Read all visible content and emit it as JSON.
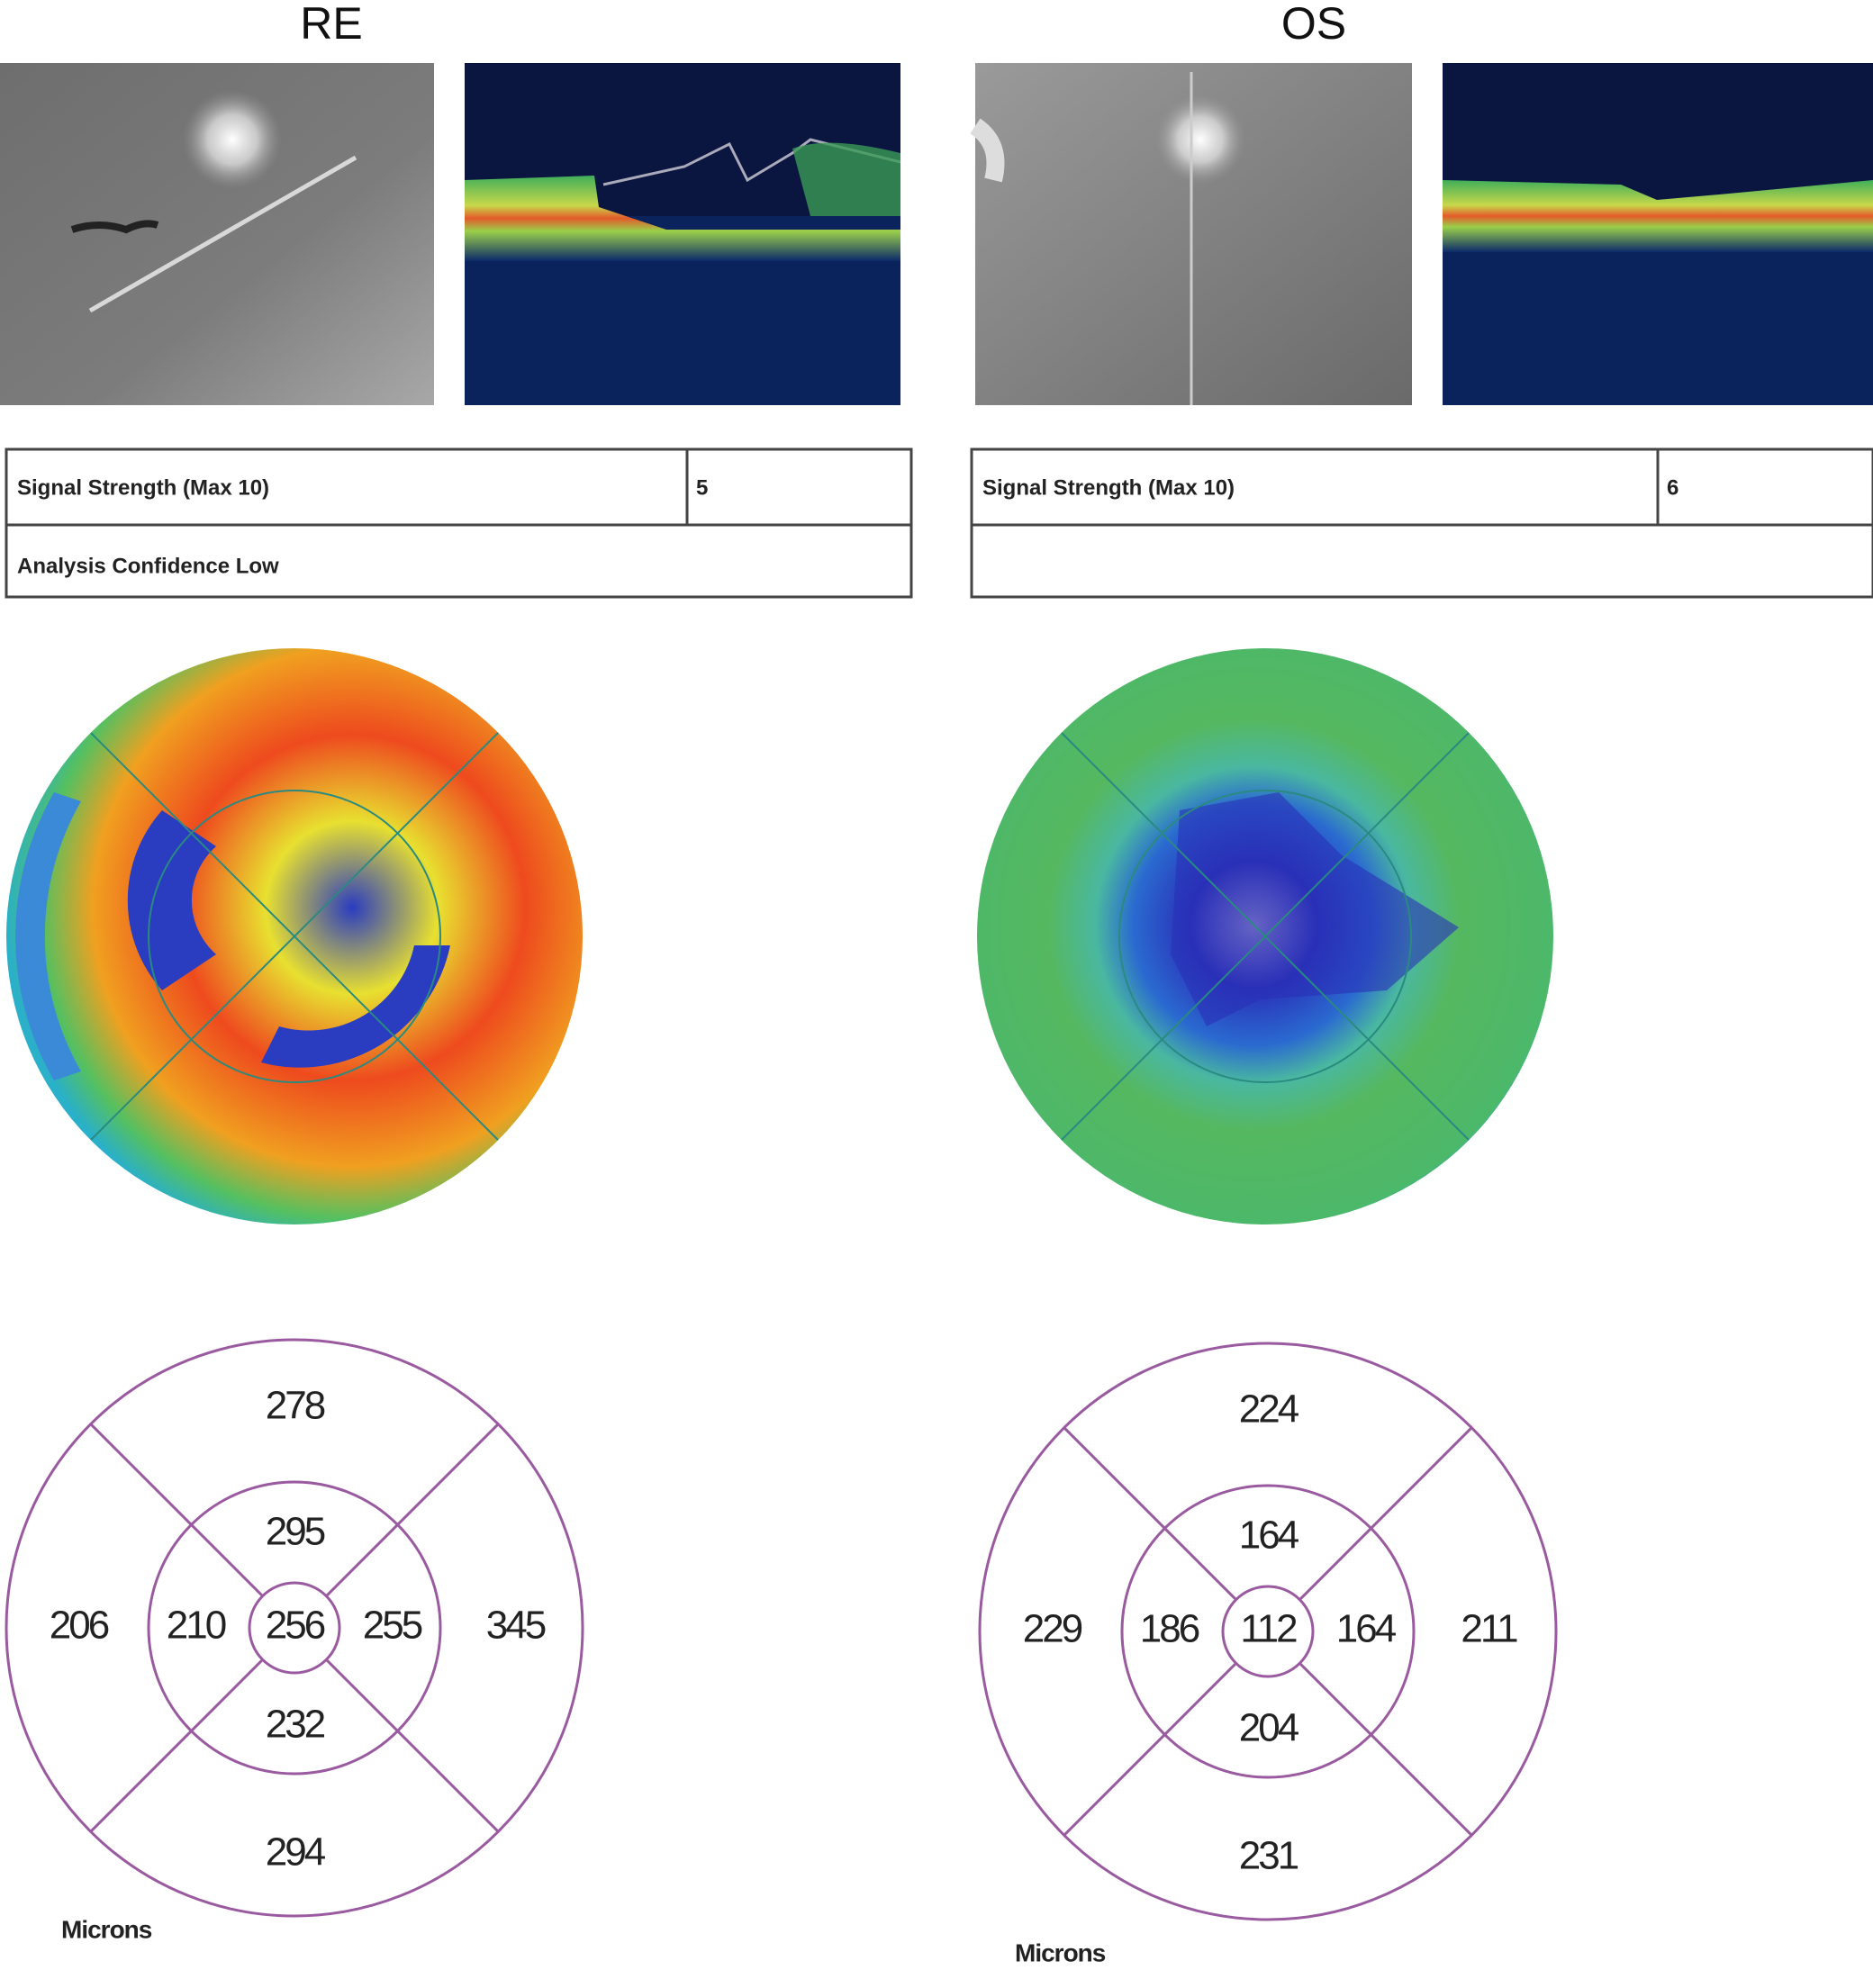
{
  "panels": [
    {
      "eye": "RE",
      "signal_label": "Signal Strength (Max 10)",
      "signal_value": 5,
      "confidence": "Analysis Confidence Low",
      "grid": {
        "outer_superior": 278,
        "inner_superior": 295,
        "outer_temporal": 206,
        "inner_temporal": 210,
        "center": 256,
        "inner_nasal": 255,
        "outer_nasal": 345,
        "inner_inferior": 232,
        "outer_inferior": 294
      },
      "unit": "Microns"
    },
    {
      "eye": "OS",
      "signal_label": "Signal Strength (Max 10)",
      "signal_value": 6,
      "grid": {
        "outer_superior": 224,
        "inner_superior": 164,
        "outer_temporal": 229,
        "inner_temporal": 186,
        "center": 112,
        "inner_nasal": 164,
        "outer_nasal": 211,
        "inner_inferior": 204,
        "outer_inferior": 231
      },
      "unit": "Microns"
    }
  ]
}
